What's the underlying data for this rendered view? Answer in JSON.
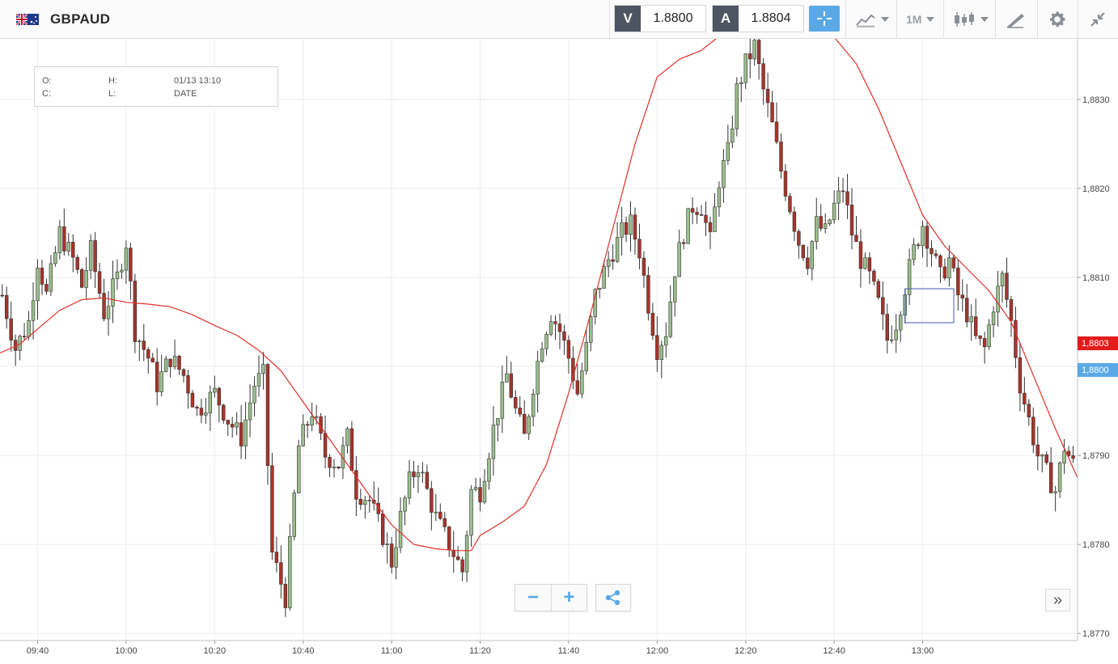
{
  "toolbar": {
    "symbol": "GBPAUD",
    "flag_icon": "gb-au-flag-icon",
    "sell": {
      "tag": "V",
      "price": "1.8800"
    },
    "buy": {
      "tag": "A",
      "price": "1.8804"
    },
    "timeframe": "1M",
    "icons": [
      "crosshair-icon",
      "indicators-icon",
      "candlestick-type-icon",
      "drawing-tools-icon",
      "gear-icon",
      "collapse-icon"
    ]
  },
  "ohlc": {
    "o_label": "O:",
    "h_label": "H:",
    "c_label": "C:",
    "l_label": "L:",
    "time": "01/13 13:10",
    "date_label": "DATE"
  },
  "controls": {
    "zoom_out": "−",
    "zoom_in": "+",
    "share_icon": "share-icon",
    "scroll_label": "»"
  },
  "price_labels": {
    "current_red": "1,8803",
    "current_blue": "1,8800"
  },
  "colors": {
    "bull": "#9bbf8c",
    "bear": "#a8342a",
    "ma": "#e0302a",
    "sell_tag": "#4d5563",
    "accent": "#5aa9e6"
  },
  "chart_data": {
    "type": "candlestick",
    "symbol": "GBPAUD",
    "timeframe": "1M",
    "y_ticks": [
      "1,8770",
      "1,8780",
      "1,8790",
      "1,8800",
      "1,8810",
      "1,8820",
      "1,8830"
    ],
    "y_tick_values": [
      1.877,
      1.878,
      1.879,
      1.88,
      1.881,
      1.882,
      1.883
    ],
    "x_ticks": [
      "09:40",
      "10:00",
      "10:20",
      "10:40",
      "11:00",
      "11:20",
      "11:40",
      "12:00",
      "12:20",
      "12:40",
      "13:00"
    ],
    "x_tick_minutes": [
      580,
      600,
      620,
      640,
      660,
      680,
      700,
      720,
      740,
      760,
      780
    ],
    "x_range_minutes": [
      571.5,
      815
    ],
    "y_range": [
      1.87692,
      1.88368
    ],
    "grid": true,
    "moving_average": {
      "name": "",
      "minutes": [
        571.5,
        576,
        580,
        585,
        590,
        595,
        600,
        605,
        610,
        615,
        620,
        625,
        630,
        635,
        640,
        645,
        650,
        655,
        660,
        665,
        670,
        675,
        678,
        680,
        685,
        690,
        695,
        700,
        705,
        710,
        715,
        720,
        725,
        730,
        735,
        740,
        745,
        750,
        755,
        760,
        765,
        770,
        775,
        780,
        785,
        790,
        795,
        800,
        805,
        810,
        815
      ],
      "values": [
        1.88015,
        1.88025,
        1.88042,
        1.88063,
        1.88075,
        1.88077,
        1.88072,
        1.8807,
        1.88067,
        1.88058,
        1.88046,
        1.88035,
        1.88018,
        1.87995,
        1.8796,
        1.87925,
        1.8789,
        1.87855,
        1.87822,
        1.878,
        1.87795,
        1.87793,
        1.87793,
        1.8781,
        1.87825,
        1.87843,
        1.8789,
        1.8797,
        1.8806,
        1.88155,
        1.8825,
        1.88325,
        1.88345,
        1.88355,
        1.88375,
        1.8839,
        1.88393,
        1.88383,
        1.8837,
        1.8837,
        1.8834,
        1.8829,
        1.8823,
        1.8817,
        1.88135,
        1.8811,
        1.88085,
        1.8805,
        1.8799,
        1.8793,
        1.87875
      ]
    },
    "candles_summary": {
      "start_minute": 572,
      "end_minute": 814,
      "close_path_minutes": [
        572,
        575,
        578,
        580,
        582,
        585,
        588,
        590,
        592,
        595,
        598,
        600,
        602,
        605,
        607,
        610,
        613,
        616,
        620,
        623,
        626,
        629,
        631,
        633,
        636,
        639,
        642,
        645,
        648,
        650,
        652,
        655,
        658,
        660,
        662,
        664,
        666,
        668,
        670,
        672,
        674,
        676,
        678,
        680,
        683,
        686,
        688,
        690,
        692,
        694,
        696,
        698,
        700,
        702,
        704,
        706,
        709,
        712,
        714,
        716,
        718,
        720,
        722,
        724,
        726,
        728,
        730,
        732,
        734,
        736,
        738,
        740,
        742,
        744,
        746,
        748,
        750,
        752,
        754,
        756,
        758,
        760,
        762,
        764,
        766,
        768,
        770,
        772,
        774,
        776,
        778,
        780,
        782,
        784,
        786,
        788,
        790,
        792,
        794,
        796,
        798,
        800,
        802,
        804,
        806,
        808,
        810,
        812,
        814
      ],
      "close_path_values": [
        1.8808,
        1.8802,
        1.8805,
        1.8812,
        1.8808,
        1.8815,
        1.8812,
        1.8809,
        1.8813,
        1.8806,
        1.881,
        1.8814,
        1.8804,
        1.8801,
        1.8798,
        1.8801,
        1.8799,
        1.8795,
        1.8797,
        1.8794,
        1.8792,
        1.8798,
        1.8799,
        1.8779,
        1.8774,
        1.8791,
        1.8795,
        1.879,
        1.8789,
        1.8792,
        1.8786,
        1.8785,
        1.8781,
        1.8778,
        1.8783,
        1.8787,
        1.8789,
        1.8786,
        1.8783,
        1.8781,
        1.8779,
        1.8777,
        1.8786,
        1.8786,
        1.8793,
        1.8799,
        1.8795,
        1.8792,
        1.8798,
        1.8803,
        1.8806,
        1.8804,
        1.8801,
        1.8797,
        1.8802,
        1.8808,
        1.8812,
        1.8815,
        1.8816,
        1.8813,
        1.8807,
        1.8802,
        1.8804,
        1.8811,
        1.8815,
        1.8818,
        1.8818,
        1.8814,
        1.8821,
        1.8824,
        1.8831,
        1.8834,
        1.8836,
        1.8831,
        1.8827,
        1.8822,
        1.8818,
        1.8814,
        1.8812,
        1.8816,
        1.8815,
        1.8818,
        1.882,
        1.8815,
        1.8812,
        1.881,
        1.8807,
        1.8803,
        1.8805,
        1.8809,
        1.8813,
        1.8816,
        1.8813,
        1.881,
        1.8812,
        1.8808,
        1.8806,
        1.8803,
        1.8802,
        1.8807,
        1.881,
        1.8805,
        1.8798,
        1.8794,
        1.879,
        1.8788,
        1.8786,
        1.8791,
        1.8789,
        1.8787,
        1.8786,
        1.8788,
        1.879
      ]
    }
  }
}
